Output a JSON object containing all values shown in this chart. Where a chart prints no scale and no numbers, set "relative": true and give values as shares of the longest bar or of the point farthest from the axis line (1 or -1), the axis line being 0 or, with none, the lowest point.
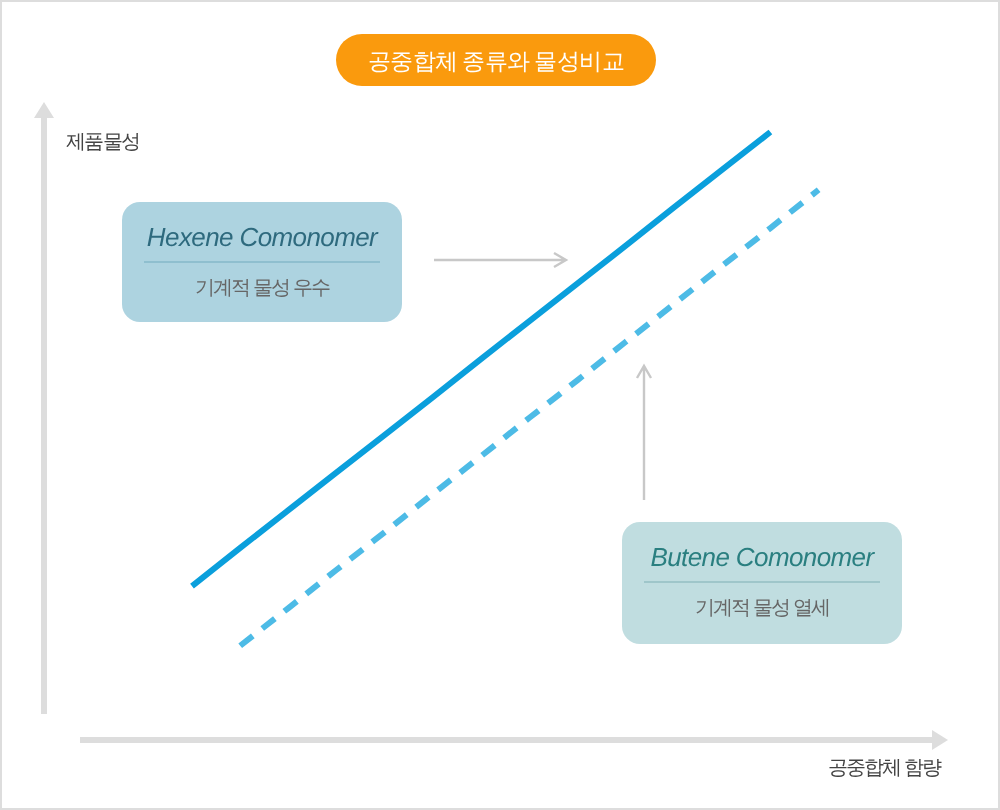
{
  "chart_data": {
    "type": "line",
    "title": "공중합체 종류와 물성비교",
    "xlabel": "공중합체 함량",
    "ylabel": "제품물성",
    "relative": true,
    "categories": [
      null,
      null,
      null,
      null,
      null,
      null,
      null,
      null,
      null,
      null,
      null,
      null,
      null,
      null
    ],
    "series": [
      {
        "color": "#0a9fdc",
        "line_style": "solid",
        "values": [
          0.253,
          0.316,
          0.378,
          0.44,
          0.502,
          0.564,
          0.627,
          0.689,
          0.751,
          0.813,
          0.876,
          0.938,
          1,
          null
        ]
      },
      {
        "color": "#4dbbe6",
        "line_style": "dashed",
        "values": [
          null,
          0.155,
          0.217,
          0.28,
          0.342,
          0.405,
          0.467,
          0.53,
          0.592,
          0.655,
          0.717,
          0.78,
          0.842,
          0.905
        ]
      }
    ],
    "annotations": [
      "Hexene Comonomer",
      "기계적 물성 우수",
      "Butene Comonomer",
      "기계적 물성 열세"
    ]
  }
}
